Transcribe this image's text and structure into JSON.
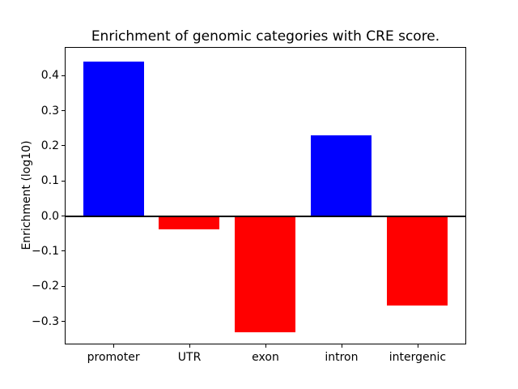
{
  "chart_data": {
    "type": "bar",
    "title": "Enrichment of genomic categories with CRE score.",
    "xlabel": "",
    "ylabel": "Enrichment (log10)",
    "categories": [
      "promoter",
      "UTR",
      "exon",
      "intron",
      "intergenic"
    ],
    "values": [
      0.44,
      -0.038,
      -0.33,
      0.23,
      -0.255
    ],
    "bar_colors": [
      "#0000ff",
      "#ff0000",
      "#ff0000",
      "#0000ff",
      "#ff0000"
    ],
    "positive_color": "#0000ff",
    "negative_color": "#ff0000",
    "yticks": [
      0.4,
      0.3,
      0.2,
      0.1,
      0.0,
      -0.1,
      -0.2,
      -0.3
    ],
    "ytick_labels": [
      "0.4",
      "0.3",
      "0.2",
      "0.1",
      "0.0",
      "−0.1",
      "−0.2",
      "−0.3"
    ],
    "ylim": [
      -0.3655,
      0.4815
    ],
    "xlim": [
      -0.64,
      4.64
    ],
    "bar_width": 0.8,
    "zero_line": true,
    "grid": false,
    "legend": null,
    "spine_color": "#000000",
    "background_color": "#ffffff"
  }
}
